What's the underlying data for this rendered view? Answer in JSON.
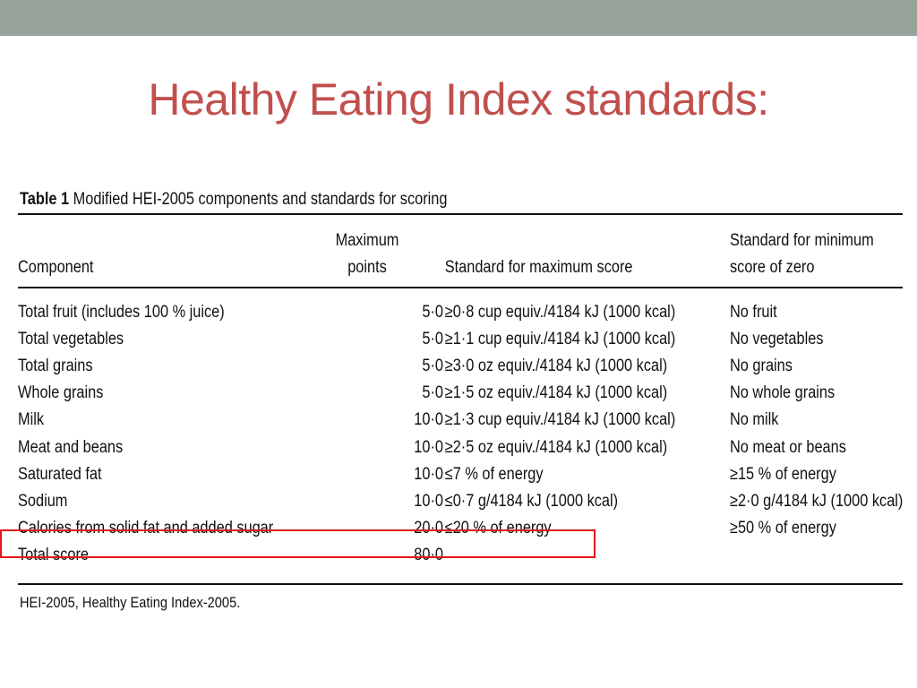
{
  "slide": {
    "title": "Healthy Eating Index standards:"
  },
  "table": {
    "caption_lead": "Table 1",
    "caption_rest": "Modified HEI-2005 components and standards for scoring",
    "headers": {
      "component": "Component",
      "max_points_line1": "Maximum",
      "max_points_line2": "points",
      "max_standard": "Standard for maximum score",
      "min_standard_line1": "Standard for minimum",
      "min_standard_line2": "score of zero"
    },
    "rows": [
      {
        "component": "Total fruit (includes 100 % juice)",
        "points": "5·0",
        "max": "≥0·8 cup equiv./4184 kJ (1000 kcal)",
        "min": "No fruit"
      },
      {
        "component": "Total vegetables",
        "points": "5·0",
        "max": "≥1·1 cup equiv./4184 kJ (1000 kcal)",
        "min": "No vegetables"
      },
      {
        "component": "Total grains",
        "points": "5·0",
        "max": "≥3·0 oz equiv./4184 kJ (1000 kcal)",
        "min": "No grains"
      },
      {
        "component": "Whole grains",
        "points": "5·0",
        "max": "≥1·5 oz equiv./4184 kJ (1000 kcal)",
        "min": "No whole grains"
      },
      {
        "component": "Milk",
        "points": "10·0",
        "max": "≥1·3 cup equiv./4184 kJ (1000 kcal)",
        "min": "No milk"
      },
      {
        "component": "Meat and beans",
        "points": "10·0",
        "max": "≥2·5 oz equiv./4184 kJ (1000 kcal)",
        "min": "No meat or beans"
      },
      {
        "component": "Saturated fat",
        "points": "10·0",
        "max": "≤7 % of energy",
        "min": "≥15 % of energy"
      },
      {
        "component": "Sodium",
        "points": "10·0",
        "max": "≤0·7 g/4184 kJ (1000 kcal)",
        "min": "≥2·0 g/4184 kJ (1000 kcal)"
      },
      {
        "component": "Calories from solid fat and added sugar",
        "points": "20·0",
        "max": "≤20 % of energy",
        "min": "≥50 % of energy"
      },
      {
        "component": "Total score",
        "points": "80·0",
        "max": "",
        "min": ""
      }
    ],
    "footnote": "HEI-2005, Healthy Eating Index-2005."
  },
  "colors": {
    "top_bar": "#95a39b",
    "title": "#c0504d",
    "highlight_border": "#e3141b"
  }
}
